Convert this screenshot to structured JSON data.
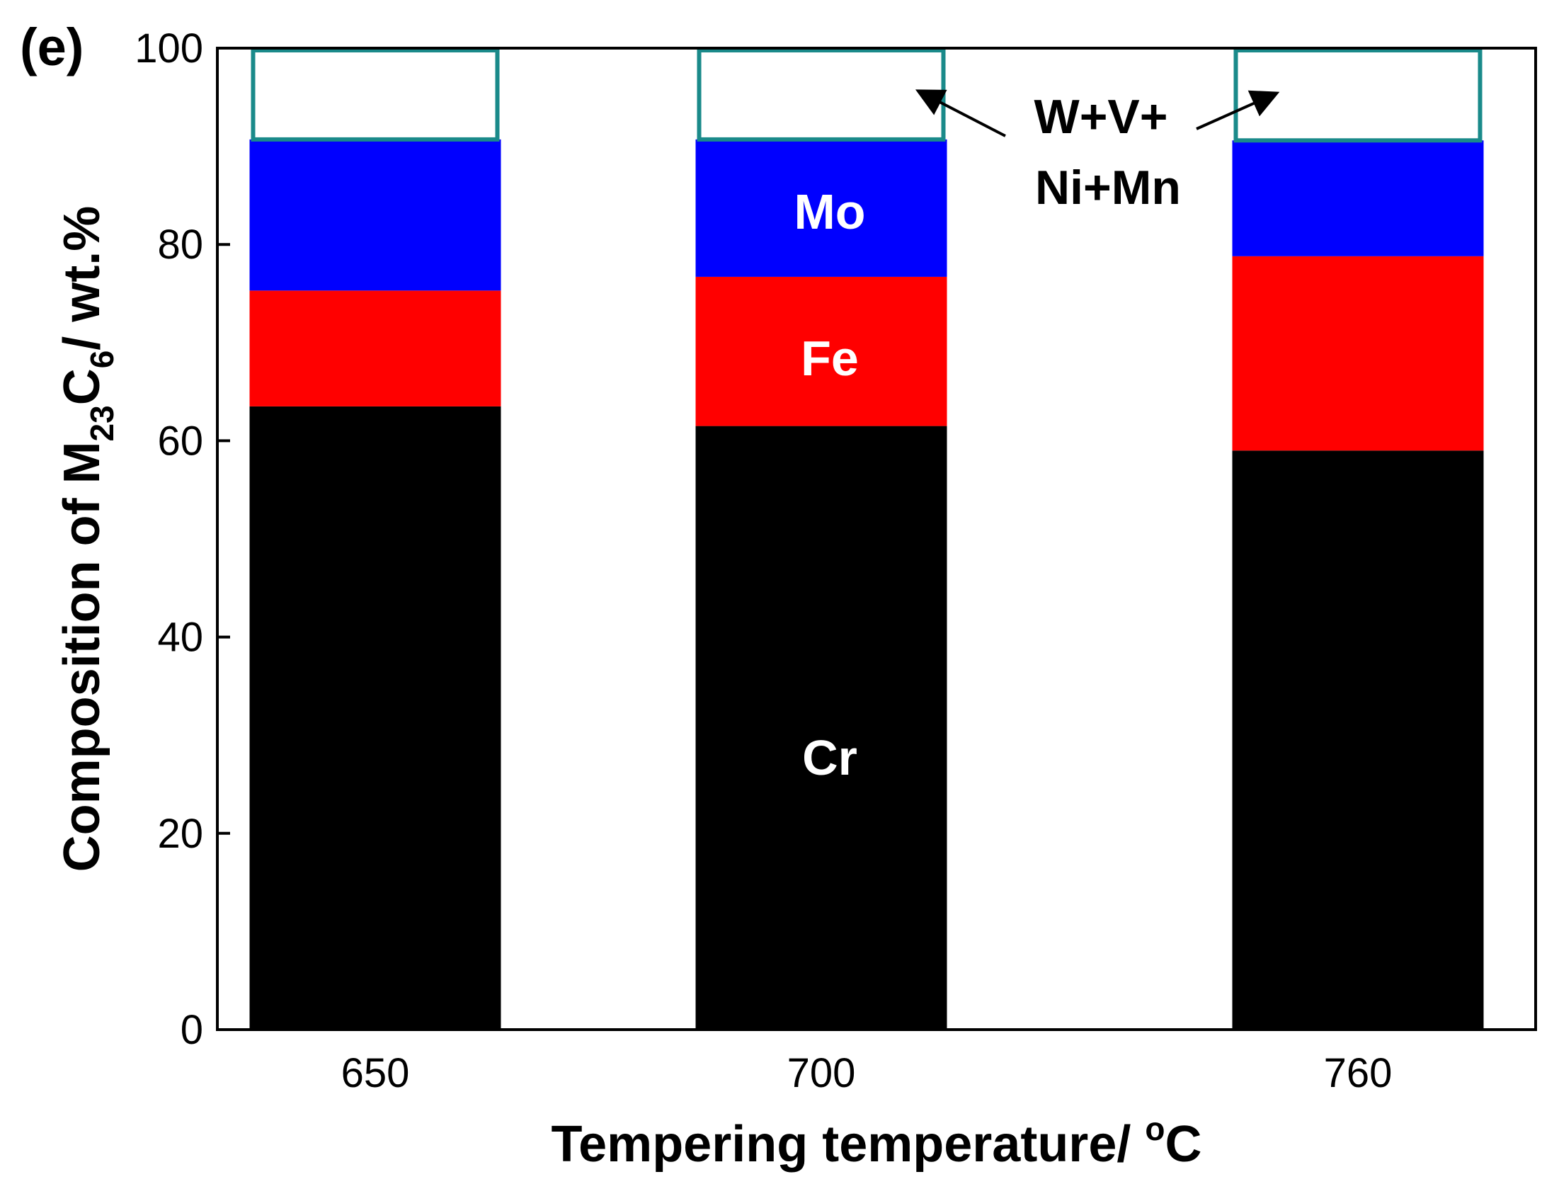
{
  "chart_data": {
    "type": "bar",
    "stacked": true,
    "panel_label": "(e)",
    "categories": [
      "650",
      "700",
      "760"
    ],
    "series": [
      {
        "name": "Cr",
        "color": "#000000",
        "values": [
          63.5,
          61.5,
          59.0
        ]
      },
      {
        "name": "Fe",
        "color": "#ff0000",
        "values": [
          11.8,
          15.2,
          19.8
        ]
      },
      {
        "name": "Mo",
        "color": "#0000ff",
        "values": [
          15.4,
          14.0,
          11.8
        ]
      },
      {
        "name": "W+V+Ni+Mn",
        "color": "#ffffff",
        "edge_color": "#1a8a8a",
        "values": [
          9.3,
          9.3,
          9.4
        ]
      }
    ],
    "xlabel": "Tempering temperature/ °C",
    "ylabel": "Composition of M23C6/ wt.%",
    "ylim": [
      0,
      100
    ],
    "yticks": [
      0,
      20,
      40,
      60,
      80,
      100
    ],
    "segment_labels": {
      "Cr": "Cr",
      "Fe": "Fe",
      "Mo": "Mo"
    },
    "annotation": {
      "line1": "W+V+",
      "line2": "Ni+Mn"
    }
  }
}
